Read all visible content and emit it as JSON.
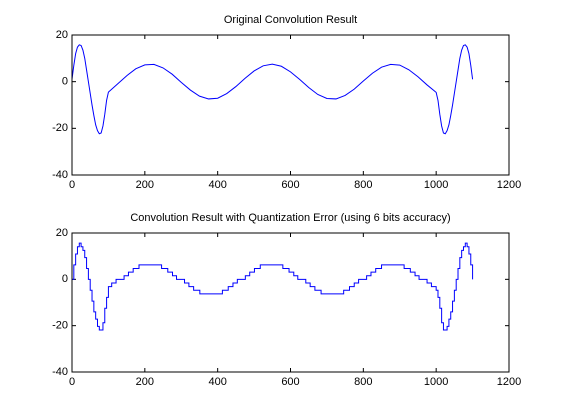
{
  "chart_data": [
    {
      "type": "line",
      "title": "Original Convolution Result",
      "x": [
        0,
        5,
        10,
        15,
        20,
        25,
        30,
        35,
        40,
        45,
        50,
        55,
        60,
        65,
        70,
        75,
        80,
        85,
        90,
        95,
        100,
        125,
        150,
        175,
        200,
        225,
        250,
        275,
        300,
        325,
        350,
        375,
        400,
        425,
        450,
        475,
        500,
        525,
        550,
        575,
        600,
        625,
        650,
        675,
        700,
        725,
        750,
        775,
        800,
        825,
        850,
        875,
        900,
        925,
        950,
        975,
        1000,
        1005,
        1010,
        1015,
        1020,
        1025,
        1030,
        1035,
        1040,
        1045,
        1050,
        1055,
        1060,
        1065,
        1070,
        1075,
        1080,
        1085,
        1090,
        1095,
        1100
      ],
      "series": [
        {
          "color": "#0000ff",
          "values": [
            1,
            7,
            12,
            14.8,
            15.8,
            15.5,
            13.5,
            10,
            5,
            0,
            -5,
            -10,
            -14.5,
            -18.5,
            -21,
            -22.3,
            -22,
            -19,
            -14,
            -8,
            -4.5,
            -1,
            2.5,
            5.5,
            7.2,
            7.4,
            5.9,
            3.2,
            -0.3,
            -3.6,
            -6.2,
            -7.4,
            -7.1,
            -5.1,
            -2.1,
            1.4,
            4.6,
            6.8,
            7.5,
            6.6,
            4.2,
            1,
            -2.5,
            -5.5,
            -7.2,
            -7.4,
            -5.9,
            -3.2,
            0.3,
            3.6,
            6.2,
            7.4,
            7.1,
            5.1,
            2.1,
            -1.4,
            -4.6,
            -8,
            -14,
            -19,
            -22,
            -22.3,
            -21,
            -18.5,
            -14.5,
            -10,
            -5,
            0,
            5,
            10,
            13.5,
            15.5,
            15.8,
            14.8,
            12,
            7,
            1
          ]
        }
      ],
      "xlim": [
        0,
        1200
      ],
      "xticks": [
        0,
        200,
        400,
        600,
        800,
        1000,
        1200
      ],
      "ylim": [
        -40,
        20
      ],
      "yticks": [
        -40,
        -20,
        0,
        20
      ]
    },
    {
      "type": "line",
      "title": "Convolution Result with Quantization Error (using 6 bits accuracy)",
      "drawstyle": "steps",
      "x": [
        0,
        5,
        10,
        15,
        20,
        25,
        30,
        35,
        40,
        45,
        50,
        55,
        60,
        65,
        70,
        75,
        80,
        85,
        90,
        95,
        100,
        109,
        121,
        143,
        155,
        168,
        184,
        246,
        263,
        276,
        287,
        309,
        321,
        334,
        351,
        413,
        429,
        442,
        454,
        476,
        488,
        501,
        517,
        579,
        596,
        609,
        620,
        642,
        654,
        667,
        684,
        746,
        762,
        775,
        787,
        809,
        821,
        834,
        850,
        912,
        929,
        942,
        953,
        975,
        987,
        1000,
        1005,
        1010,
        1015,
        1020,
        1025,
        1030,
        1035,
        1040,
        1045,
        1050,
        1055,
        1060,
        1065,
        1070,
        1075,
        1080,
        1085,
        1090,
        1095,
        1100
      ],
      "series": [
        {
          "color": "#0000ff",
          "values": [
            0,
            6.25,
            10.94,
            14.06,
            15.63,
            14.06,
            12.5,
            9.38,
            4.69,
            0,
            -4.69,
            -9.38,
            -14.06,
            -17.19,
            -20.31,
            -21.88,
            -21.88,
            -18.75,
            -12.5,
            -7.81,
            -3.13,
            -1.56,
            0,
            1.56,
            3.13,
            4.69,
            6.25,
            4.69,
            3.13,
            1.56,
            0,
            -1.56,
            -3.13,
            -4.69,
            -6.25,
            -4.69,
            -3.13,
            -1.56,
            0,
            1.56,
            3.13,
            4.69,
            6.25,
            4.69,
            3.13,
            1.56,
            0,
            -1.56,
            -3.13,
            -4.69,
            -6.25,
            -4.69,
            -3.13,
            -1.56,
            0,
            1.56,
            3.13,
            4.69,
            6.25,
            4.69,
            3.13,
            1.56,
            0,
            -1.56,
            -3.13,
            -4.69,
            -7.81,
            -12.5,
            -18.75,
            -21.88,
            -21.88,
            -20.31,
            -17.19,
            -14.06,
            -9.38,
            -4.69,
            0,
            4.69,
            9.38,
            12.5,
            14.06,
            15.63,
            14.06,
            10.94,
            6.25,
            0
          ]
        }
      ],
      "xlim": [
        0,
        1200
      ],
      "xticks": [
        0,
        200,
        400,
        600,
        800,
        1000,
        1200
      ],
      "ylim": [
        -40,
        20
      ],
      "yticks": [
        -40,
        -20,
        0,
        20
      ]
    }
  ]
}
